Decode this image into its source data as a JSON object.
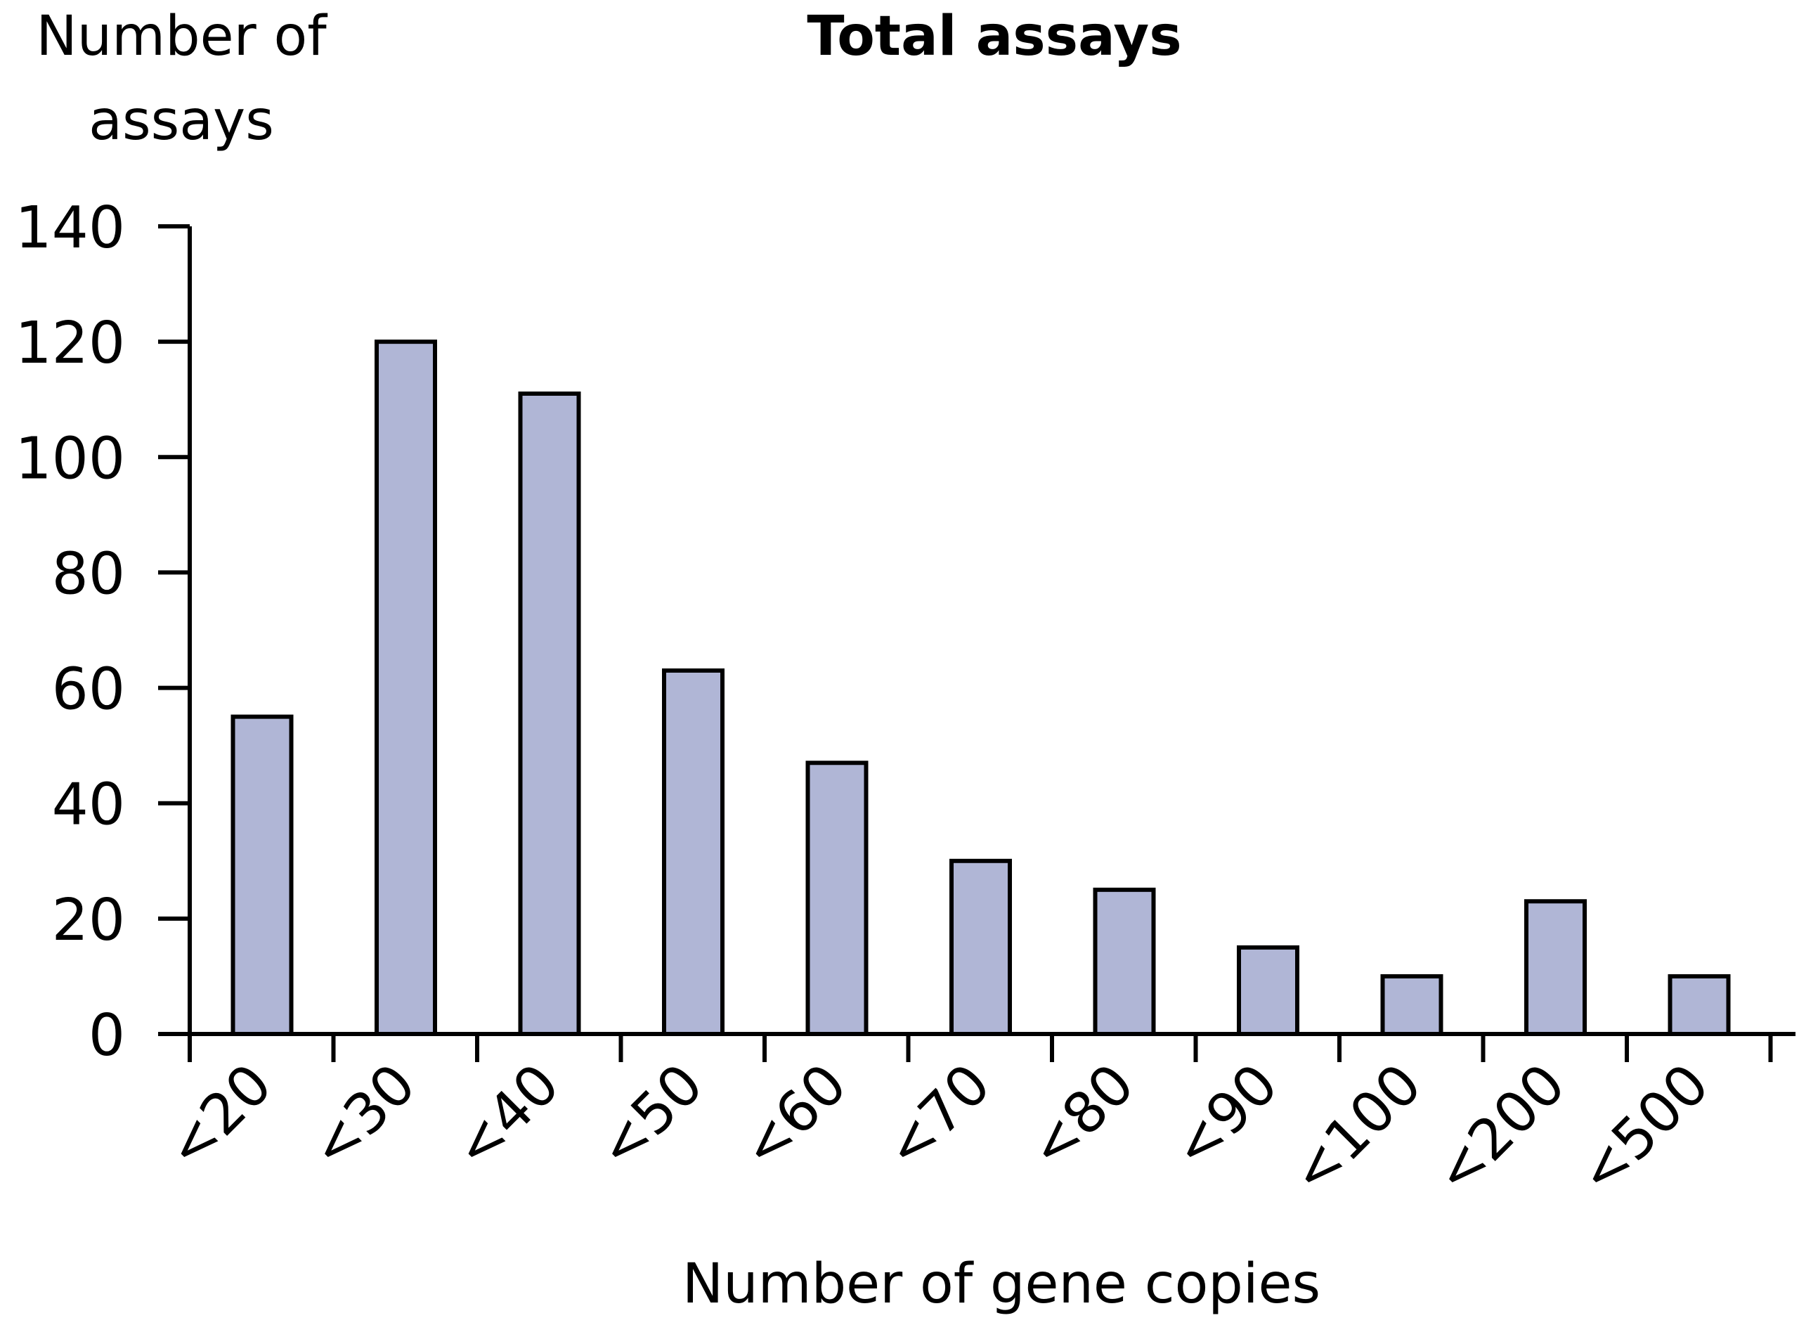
{
  "chart_data": {
    "type": "bar",
    "title": "Total assays",
    "ylabel": [
      "Number of",
      "assays"
    ],
    "xlabel": "Number of gene copies",
    "categories": [
      "<20",
      "<30",
      "<40",
      "<50",
      "<60",
      "<70",
      "<80",
      "<90",
      "<100",
      "<200",
      "<500"
    ],
    "values": [
      55,
      120,
      111,
      63,
      47,
      30,
      25,
      15,
      10,
      23,
      10
    ],
    "ylim": [
      0,
      140
    ],
    "yticks": [
      0,
      20,
      40,
      60,
      80,
      100,
      120,
      140
    ],
    "grid": false,
    "legend": "none",
    "bar_color": "#b0b6d6",
    "edge_color": "#000000"
  }
}
